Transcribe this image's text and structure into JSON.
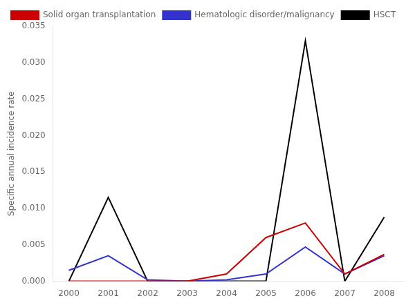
{
  "chart_data": {
    "type": "line",
    "ylabel": "Specific annual incidence rate",
    "x": [
      2000,
      2001,
      2002,
      2003,
      2004,
      2005,
      2006,
      2007,
      2008
    ],
    "series": [
      {
        "name": "Solid organ transplantation",
        "color": "#cc0000",
        "values": [
          0.0,
          0.0,
          0.0,
          0.0,
          0.001,
          0.006,
          0.008,
          0.001,
          0.0037
        ]
      },
      {
        "name": "Hematologic disorder/malignancy",
        "color": "#3333cc",
        "values": [
          0.0015,
          0.0035,
          0.0002,
          0.0,
          0.0002,
          0.001,
          0.0047,
          0.001,
          0.0035
        ]
      },
      {
        "name": "HSCT",
        "color": "#000000",
        "values": [
          0.0,
          0.0115,
          0.0,
          0.0,
          0.0,
          0.0,
          0.033,
          0.0,
          0.0088
        ]
      }
    ],
    "xlim": [
      1999.6,
      2008.5
    ],
    "xticks": [
      2000,
      2001,
      2002,
      2003,
      2004,
      2005,
      2006,
      2007,
      2008
    ],
    "ylim": [
      0,
      0.035
    ],
    "yticks": [
      {
        "value": 0.0,
        "label": "0.000"
      },
      {
        "value": 0.005,
        "label": "0.005"
      },
      {
        "value": 0.01,
        "label": "0.010"
      },
      {
        "value": 0.015,
        "label": "0.015"
      },
      {
        "value": 0.02,
        "label": "0.020"
      },
      {
        "value": 0.025,
        "label": "0.025"
      },
      {
        "value": 0.03,
        "label": "0.030"
      },
      {
        "value": 0.035,
        "label": "0.035"
      }
    ],
    "grid": false,
    "legend": "upper left"
  }
}
